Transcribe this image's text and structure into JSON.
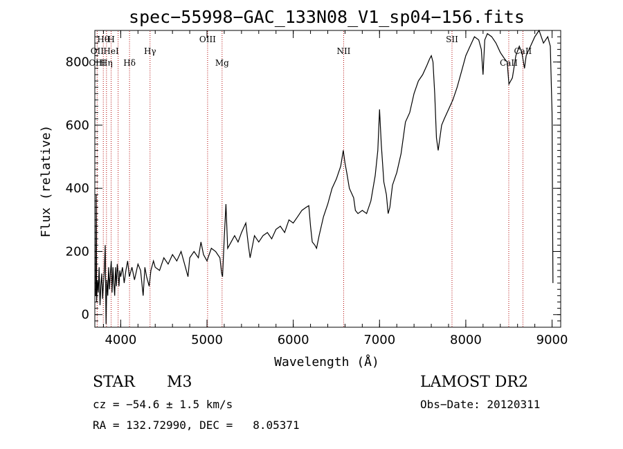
{
  "chart_data": {
    "type": "line",
    "title": "spec−55998−GAC_133N08_V1_sp04−156.fits",
    "xlabel": "Wavelength (Å)",
    "ylabel": "Flux (relative)",
    "xlim": [
      3700,
      9100
    ],
    "ylim": [
      -40,
      900
    ],
    "x_ticks": [
      4000,
      5000,
      6000,
      7000,
      8000,
      9000
    ],
    "y_ticks": [
      0,
      200,
      400,
      600,
      800
    ],
    "grid": false,
    "legend": "none",
    "series": [
      {
        "color": "#000000",
        "points": [
          [
            3710,
            60
          ],
          [
            3715,
            380
          ],
          [
            3720,
            40
          ],
          [
            3730,
            110
          ],
          [
            3740,
            70
          ],
          [
            3750,
            150
          ],
          [
            3760,
            30
          ],
          [
            3770,
            90
          ],
          [
            3780,
            130
          ],
          [
            3790,
            50
          ],
          [
            3800,
            100
          ],
          [
            3810,
            140
          ],
          [
            3820,
            220
          ],
          [
            3830,
            -30
          ],
          [
            3840,
            110
          ],
          [
            3850,
            60
          ],
          [
            3860,
            150
          ],
          [
            3870,
            80
          ],
          [
            3880,
            130
          ],
          [
            3890,
            170
          ],
          [
            3900,
            70
          ],
          [
            3910,
            150
          ],
          [
            3920,
            100
          ],
          [
            3930,
            60
          ],
          [
            3940,
            150
          ],
          [
            3950,
            90
          ],
          [
            3960,
            160
          ],
          [
            3970,
            130
          ],
          [
            3980,
            90
          ],
          [
            3990,
            140
          ],
          [
            4000,
            120
          ],
          [
            4020,
            150
          ],
          [
            4040,
            100
          ],
          [
            4060,
            140
          ],
          [
            4080,
            170
          ],
          [
            4100,
            120
          ],
          [
            4130,
            150
          ],
          [
            4160,
            110
          ],
          [
            4200,
            160
          ],
          [
            4230,
            140
          ],
          [
            4260,
            60
          ],
          [
            4280,
            150
          ],
          [
            4300,
            120
          ],
          [
            4330,
            90
          ],
          [
            4350,
            140
          ],
          [
            4380,
            170
          ],
          [
            4400,
            150
          ],
          [
            4450,
            140
          ],
          [
            4500,
            180
          ],
          [
            4550,
            160
          ],
          [
            4600,
            190
          ],
          [
            4650,
            170
          ],
          [
            4700,
            200
          ],
          [
            4750,
            150
          ],
          [
            4780,
            120
          ],
          [
            4800,
            180
          ],
          [
            4850,
            200
          ],
          [
            4900,
            180
          ],
          [
            4930,
            230
          ],
          [
            4960,
            190
          ],
          [
            5000,
            170
          ],
          [
            5050,
            210
          ],
          [
            5100,
            200
          ],
          [
            5150,
            180
          ],
          [
            5170,
            130
          ],
          [
            5180,
            120
          ],
          [
            5200,
            240
          ],
          [
            5220,
            350
          ],
          [
            5240,
            210
          ],
          [
            5280,
            230
          ],
          [
            5320,
            250
          ],
          [
            5360,
            230
          ],
          [
            5400,
            260
          ],
          [
            5450,
            290
          ],
          [
            5480,
            220
          ],
          [
            5500,
            180
          ],
          [
            5550,
            250
          ],
          [
            5600,
            230
          ],
          [
            5650,
            250
          ],
          [
            5700,
            260
          ],
          [
            5750,
            240
          ],
          [
            5800,
            270
          ],
          [
            5850,
            280
          ],
          [
            5900,
            260
          ],
          [
            5950,
            300
          ],
          [
            6000,
            290
          ],
          [
            6050,
            310
          ],
          [
            6100,
            330
          ],
          [
            6150,
            340
          ],
          [
            6180,
            345
          ],
          [
            6200,
            280
          ],
          [
            6220,
            230
          ],
          [
            6250,
            220
          ],
          [
            6270,
            210
          ],
          [
            6300,
            250
          ],
          [
            6350,
            310
          ],
          [
            6400,
            350
          ],
          [
            6450,
            400
          ],
          [
            6500,
            430
          ],
          [
            6550,
            470
          ],
          [
            6580,
            520
          ],
          [
            6600,
            480
          ],
          [
            6620,
            450
          ],
          [
            6650,
            400
          ],
          [
            6700,
            370
          ],
          [
            6720,
            330
          ],
          [
            6750,
            320
          ],
          [
            6800,
            330
          ],
          [
            6850,
            320
          ],
          [
            6900,
            360
          ],
          [
            6950,
            440
          ],
          [
            6980,
            520
          ],
          [
            7000,
            650
          ],
          [
            7020,
            540
          ],
          [
            7050,
            420
          ],
          [
            7080,
            380
          ],
          [
            7100,
            320
          ],
          [
            7120,
            340
          ],
          [
            7150,
            410
          ],
          [
            7200,
            450
          ],
          [
            7250,
            510
          ],
          [
            7300,
            610
          ],
          [
            7350,
            640
          ],
          [
            7400,
            700
          ],
          [
            7450,
            740
          ],
          [
            7500,
            760
          ],
          [
            7550,
            790
          ],
          [
            7580,
            810
          ],
          [
            7600,
            820
          ],
          [
            7620,
            800
          ],
          [
            7640,
            700
          ],
          [
            7660,
            560
          ],
          [
            7680,
            520
          ],
          [
            7700,
            560
          ],
          [
            7720,
            600
          ],
          [
            7750,
            620
          ],
          [
            7800,
            650
          ],
          [
            7850,
            680
          ],
          [
            7900,
            720
          ],
          [
            7950,
            770
          ],
          [
            8000,
            820
          ],
          [
            8050,
            850
          ],
          [
            8100,
            880
          ],
          [
            8150,
            870
          ],
          [
            8180,
            840
          ],
          [
            8200,
            760
          ],
          [
            8220,
            870
          ],
          [
            8250,
            890
          ],
          [
            8300,
            880
          ],
          [
            8350,
            860
          ],
          [
            8400,
            830
          ],
          [
            8450,
            810
          ],
          [
            8480,
            800
          ],
          [
            8500,
            730
          ],
          [
            8540,
            750
          ],
          [
            8580,
            820
          ],
          [
            8620,
            850
          ],
          [
            8650,
            830
          ],
          [
            8680,
            780
          ],
          [
            8700,
            820
          ],
          [
            8750,
            850
          ],
          [
            8800,
            880
          ],
          [
            8850,
            900
          ],
          [
            8900,
            860
          ],
          [
            8950,
            880
          ],
          [
            8980,
            850
          ],
          [
            9000,
            640
          ],
          [
            9010,
            100
          ]
        ]
      }
    ],
    "annotations": [
      {
        "label": "Hθ",
        "wavelength": 3798,
        "row": 1
      },
      {
        "label": "H",
        "wavelength": 3889,
        "row": 1
      },
      {
        "label": "OIII",
        "wavelength": 5007,
        "row": 1
      },
      {
        "label": "NII",
        "wavelength": 6584,
        "row": 2
      },
      {
        "label": "SII",
        "wavelength": 7840,
        "row": 1
      },
      {
        "label": "OII",
        "wavelength": 3727,
        "row": 2
      },
      {
        "label": "HeI",
        "wavelength": 3889,
        "row": 2
      },
      {
        "label": "Hγ",
        "wavelength": 4340,
        "row": 2
      },
      {
        "label": "CaII",
        "wavelength": 8662,
        "row": 2
      },
      {
        "label": "OIII",
        "wavelength": 3727,
        "row": 3
      },
      {
        "label": "Hη",
        "wavelength": 3835,
        "row": 3
      },
      {
        "label": "Hδ",
        "wavelength": 4102,
        "row": 3
      },
      {
        "label": "Mg",
        "wavelength": 5175,
        "row": 3
      },
      {
        "label": "CaII",
        "wavelength": 8498,
        "row": 3
      }
    ],
    "marker_lines": [
      3727,
      3798,
      3835,
      3889,
      3970,
      4102,
      4340,
      5007,
      5175,
      6584,
      7840,
      8498,
      8662
    ]
  },
  "info": {
    "object_class": "STAR",
    "subclass": "M3",
    "survey": "LAMOST DR2",
    "cz": "cz = −54.6 ± 1.5 km/s",
    "obs_date": "Obs−Date: 20120311",
    "coords": "RA = 132.72990, DEC =   8.05371"
  }
}
